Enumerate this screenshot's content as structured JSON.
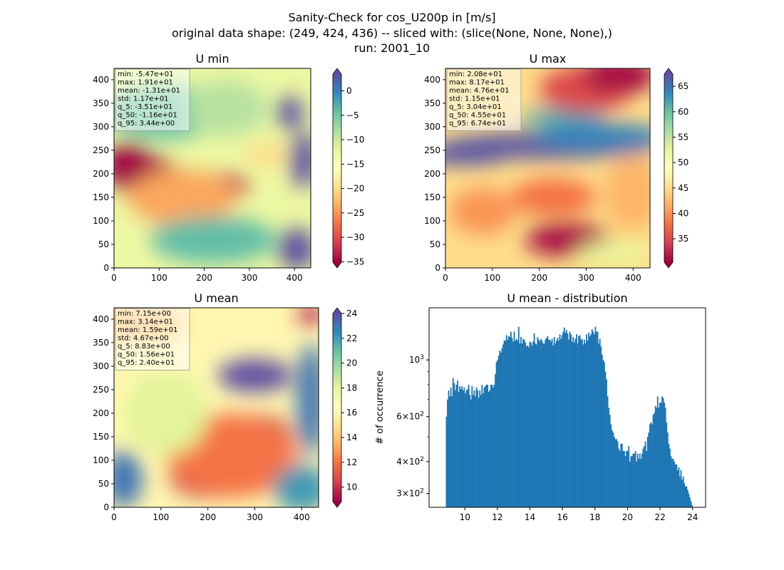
{
  "figure": {
    "suptitle_lines": [
      "Sanity-Check for cos_U200p in [m/s]",
      "original data shape: (249, 424, 436) -- sliced with: (slice(None, None, None),)",
      "run: 2001_10"
    ]
  },
  "chart_data": [
    {
      "type": "heatmap",
      "id": "umin",
      "title": "U min",
      "colormap": "Spectral",
      "xlim": [
        0,
        436
      ],
      "ylim": [
        0,
        424
      ],
      "xticks": [
        0,
        100,
        200,
        300,
        400
      ],
      "yticks": [
        0,
        50,
        100,
        150,
        200,
        250,
        300,
        350,
        400
      ],
      "clim": [
        -35.1,
        3.44
      ],
      "colorbar_ticks": [
        -35,
        -30,
        -25,
        -20,
        -15,
        -10,
        -5,
        0
      ],
      "colorbar_tick_labels": [
        "−35",
        "−30",
        "−25",
        "−20",
        "−15",
        "−10",
        "−5",
        "0"
      ],
      "stats": [
        "min: -5.47e+01",
        "max: 1.91e+01",
        "mean: -1.31e+01",
        "std: 1.17e+01",
        "q_5: -3.51e+01",
        "q_50: -1.16e+01",
        "q_95: 3.44e+00"
      ],
      "field_features": [
        {
          "x": 60,
          "y": 200,
          "rx": 80,
          "ry": 40,
          "value": -35
        },
        {
          "x": 30,
          "y": 235,
          "rx": 50,
          "ry": 30,
          "value": -35
        },
        {
          "x": 230,
          "y": 175,
          "rx": 70,
          "ry": 25,
          "value": -33
        },
        {
          "x": 150,
          "y": 150,
          "rx": 120,
          "ry": 60,
          "value": -24
        },
        {
          "x": 340,
          "y": 240,
          "rx": 50,
          "ry": 25,
          "value": -20
        },
        {
          "x": 110,
          "y": 330,
          "rx": 130,
          "ry": 60,
          "value": -5
        },
        {
          "x": 220,
          "y": 60,
          "rx": 140,
          "ry": 50,
          "value": -4
        },
        {
          "x": 250,
          "y": 340,
          "rx": 90,
          "ry": 60,
          "value": -9
        },
        {
          "x": 420,
          "y": 230,
          "rx": 30,
          "ry": 60,
          "value": 3.4
        },
        {
          "x": 390,
          "y": 330,
          "rx": 30,
          "ry": 35,
          "value": 3.4
        },
        {
          "x": 405,
          "y": 40,
          "rx": 40,
          "ry": 45,
          "value": 3.4
        }
      ]
    },
    {
      "type": "heatmap",
      "id": "umax",
      "title": "U max",
      "colormap": "Spectral",
      "xlim": [
        0,
        436
      ],
      "ylim": [
        0,
        424
      ],
      "xticks": [
        0,
        100,
        200,
        300,
        400
      ],
      "yticks": [
        0,
        50,
        100,
        150,
        200,
        250,
        300,
        350,
        400
      ],
      "clim": [
        30.4,
        67.4
      ],
      "colorbar_ticks": [
        35,
        40,
        45,
        50,
        55,
        60,
        65
      ],
      "colorbar_tick_labels": [
        "35",
        "40",
        "45",
        "50",
        "55",
        "60",
        "65"
      ],
      "stats": [
        "min: 2.08e+01",
        "max: 8.17e+01",
        "mean: 4.76e+01",
        "std: 1.15e+01",
        "q_5: 3.04e+01",
        "q_50: 4.55e+01",
        "q_95: 6.74e+01"
      ],
      "field_features": [
        {
          "x": 40,
          "y": 240,
          "rx": 100,
          "ry": 22,
          "value": 67
        },
        {
          "x": 220,
          "y": 260,
          "rx": 230,
          "ry": 28,
          "value": 67
        },
        {
          "x": 330,
          "y": 280,
          "rx": 140,
          "ry": 28,
          "value": 64
        },
        {
          "x": 250,
          "y": 320,
          "rx": 90,
          "ry": 18,
          "value": 62
        },
        {
          "x": 300,
          "y": 380,
          "rx": 100,
          "ry": 50,
          "value": 35
        },
        {
          "x": 370,
          "y": 410,
          "rx": 80,
          "ry": 40,
          "value": 31
        },
        {
          "x": 260,
          "y": 60,
          "rx": 90,
          "ry": 35,
          "value": 31
        },
        {
          "x": 230,
          "y": 150,
          "rx": 90,
          "ry": 40,
          "value": 38
        },
        {
          "x": 80,
          "y": 120,
          "rx": 70,
          "ry": 50,
          "value": 40
        },
        {
          "x": 400,
          "y": 160,
          "rx": 60,
          "ry": 80,
          "value": 42
        },
        {
          "x": 360,
          "y": 30,
          "rx": 80,
          "ry": 25,
          "value": 52
        },
        {
          "x": 60,
          "y": 370,
          "rx": 80,
          "ry": 40,
          "value": 45
        }
      ]
    },
    {
      "type": "heatmap",
      "id": "umean",
      "title": "U mean",
      "colormap": "Spectral",
      "xlim": [
        0,
        436
      ],
      "ylim": [
        0,
        424
      ],
      "xticks": [
        0,
        100,
        200,
        300,
        400
      ],
      "yticks": [
        0,
        50,
        100,
        150,
        200,
        250,
        300,
        350,
        400
      ],
      "clim": [
        8.83,
        24.0
      ],
      "colorbar_ticks": [
        10,
        12,
        14,
        16,
        18,
        20,
        22,
        24
      ],
      "colorbar_tick_labels": [
        "10",
        "12",
        "14",
        "16",
        "18",
        "20",
        "22",
        "24"
      ],
      "stats": [
        "min: 7.15e+00",
        "max: 3.14e+01",
        "mean: 1.59e+01",
        "std: 4.67e+00",
        "q_5: 8.83e+00",
        "q_50: 1.56e+01",
        "q_95: 2.40e+01"
      ],
      "field_features": [
        {
          "x": 310,
          "y": 150,
          "rx": 70,
          "ry": 45,
          "value": 8.8
        },
        {
          "x": 210,
          "y": 60,
          "rx": 90,
          "ry": 40,
          "value": 9.5
        },
        {
          "x": 250,
          "y": 110,
          "rx": 140,
          "ry": 90,
          "value": 12
        },
        {
          "x": 300,
          "y": 280,
          "rx": 80,
          "ry": 35,
          "value": 24
        },
        {
          "x": 420,
          "y": 230,
          "rx": 30,
          "ry": 120,
          "value": 23
        },
        {
          "x": 400,
          "y": 40,
          "rx": 60,
          "ry": 50,
          "value": 22
        },
        {
          "x": 20,
          "y": 60,
          "rx": 40,
          "ry": 60,
          "value": 23
        },
        {
          "x": 60,
          "y": 390,
          "rx": 90,
          "ry": 40,
          "value": 14
        },
        {
          "x": 420,
          "y": 410,
          "rx": 30,
          "ry": 20,
          "value": 9.5
        },
        {
          "x": 110,
          "y": 200,
          "rx": 90,
          "ry": 90,
          "value": 18
        }
      ]
    },
    {
      "type": "bar",
      "id": "hist",
      "title": "U mean - distribution",
      "xlabel": "",
      "ylabel": "# of occurrence",
      "yscale": "log",
      "xlim": [
        7.8,
        24.8
      ],
      "ylim": [
        265,
        1600
      ],
      "xticks": [
        10,
        12,
        14,
        16,
        18,
        20,
        22,
        24
      ],
      "yticks_major": [
        {
          "value": 300,
          "base": "3×10",
          "exp": "2"
        },
        {
          "value": 400,
          "base": "4×10",
          "exp": "2"
        },
        {
          "value": 600,
          "base": "6×10",
          "exp": "2"
        },
        {
          "value": 1000,
          "base": "10",
          "exp": "3"
        }
      ],
      "color": "#1f77b4",
      "bin_edges_range": [
        8.83,
        24.0
      ],
      "counts": [
        600,
        700,
        760,
        720,
        780,
        720,
        850,
        810,
        760,
        800,
        830,
        750,
        790,
        770,
        790,
        760,
        780,
        740,
        760,
        770,
        800,
        730,
        700,
        790,
        730,
        760,
        720,
        780,
        760,
        710,
        760,
        730,
        800,
        740,
        780,
        790,
        800,
        800,
        750,
        760,
        800,
        800,
        780,
        800,
        880,
        980,
        1000,
        1040,
        1090,
        1070,
        1110,
        1150,
        1190,
        1190,
        1250,
        1200,
        1240,
        1230,
        1290,
        1220,
        1180,
        1290,
        1190,
        1210,
        1190,
        1350,
        1160,
        1230,
        1160,
        1210,
        1200,
        1170,
        1130,
        1140,
        1120,
        1180,
        1170,
        1140,
        1180,
        1270,
        1160,
        1150,
        1230,
        1200,
        1180,
        1210,
        1190,
        1160,
        1160,
        1200,
        1220,
        1240,
        1200,
        1200,
        1180,
        1210,
        1140,
        1230,
        1160,
        1190,
        1220,
        1190,
        1260,
        1210,
        1250,
        1290,
        1340,
        1280,
        1310,
        1270,
        1200,
        1290,
        1260,
        1180,
        1230,
        1170,
        1210,
        1260,
        1160,
        1240,
        1250,
        1200,
        1210,
        1150,
        1200,
        1160,
        1260,
        1190,
        1280,
        1240,
        1260,
        1320,
        1290,
        1260,
        1350,
        1290,
        1290,
        1160,
        1210,
        1130,
        1050,
        1000,
        980,
        900,
        840,
        720,
        650,
        610,
        560,
        530,
        520,
        500,
        490,
        490,
        480,
        450,
        440,
        470,
        470,
        440,
        440,
        420,
        440,
        440,
        460,
        400,
        420,
        420,
        430,
        430,
        440,
        400,
        430,
        410,
        430,
        410,
        430,
        450,
        460,
        480,
        440,
        500,
        520,
        560,
        570,
        560,
        610,
        620,
        660,
        650,
        720,
        650,
        680,
        680,
        720,
        710,
        680,
        650,
        570,
        520,
        470,
        450,
        420,
        410,
        410,
        400,
        390,
        390,
        370,
        380,
        350,
        370,
        340,
        350,
        330,
        320,
        320,
        310,
        300,
        290,
        280,
        270
      ]
    }
  ]
}
